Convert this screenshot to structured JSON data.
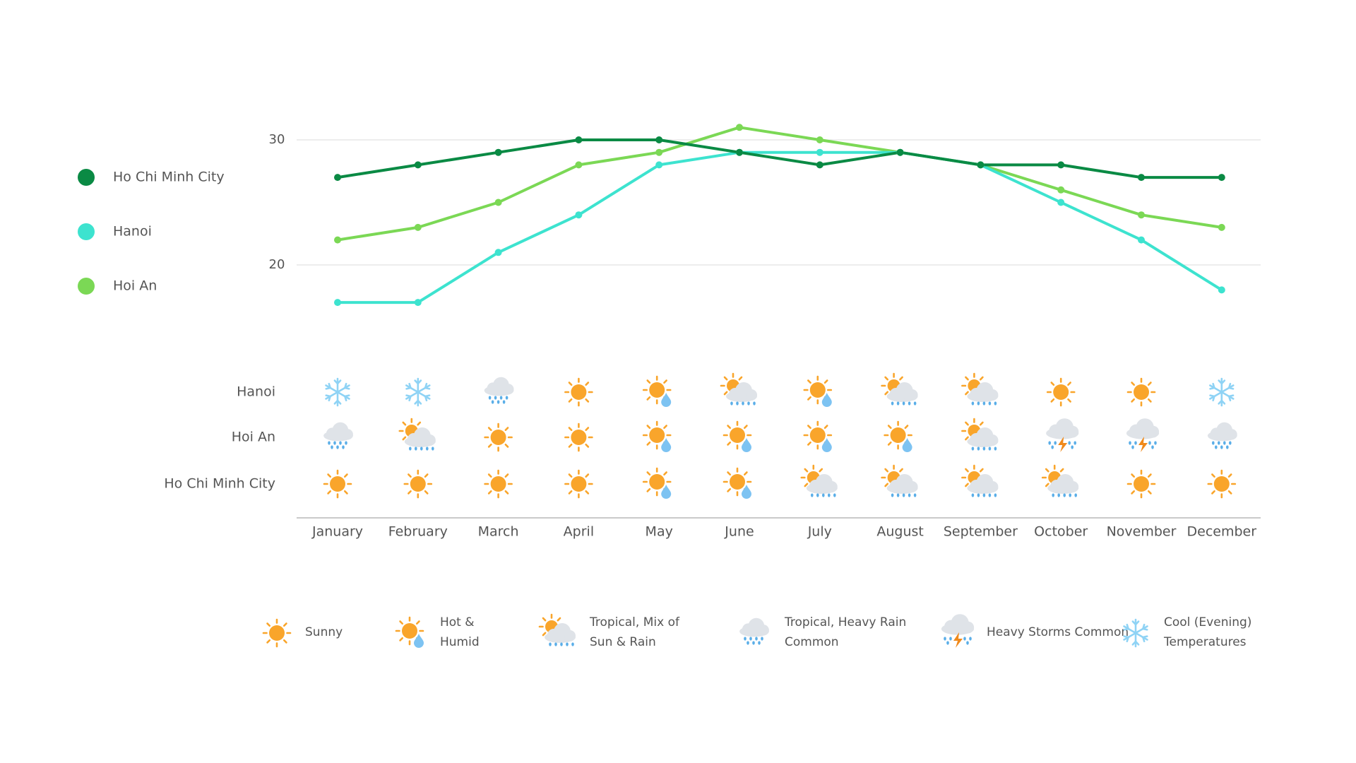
{
  "chart_data": {
    "type": "line",
    "title": "",
    "xlabel": "",
    "ylabel": "",
    "ylim": [
      14,
      33
    ],
    "y_ticks": [
      20,
      30
    ],
    "grid": true,
    "legend_position": "left",
    "categories": [
      "January",
      "February",
      "March",
      "April",
      "May",
      "June",
      "July",
      "August",
      "September",
      "October",
      "November",
      "December"
    ],
    "series": [
      {
        "name": "Ho Chi Minh City",
        "color": "#0a8a44",
        "values": [
          27,
          28,
          29,
          30,
          30,
          29,
          28,
          29,
          28,
          28,
          27,
          27
        ]
      },
      {
        "name": "Hanoi",
        "color": "#3de3cf",
        "values": [
          17,
          17,
          21,
          24,
          28,
          29,
          29,
          29,
          28,
          25,
          22,
          18
        ]
      },
      {
        "name": "Hoi An",
        "color": "#7bd855",
        "values": [
          22,
          23,
          25,
          28,
          29,
          31,
          30,
          29,
          28,
          26,
          24,
          23
        ]
      }
    ]
  },
  "weather_grid": {
    "rows": [
      {
        "city": "Hanoi",
        "icons": [
          "cool",
          "cool",
          "rain",
          "sunny",
          "hot",
          "mix",
          "hot",
          "mix",
          "mix",
          "sunny",
          "sunny",
          "cool"
        ]
      },
      {
        "city": "Hoi An",
        "icons": [
          "rain",
          "mix",
          "sunny",
          "sunny",
          "hot",
          "hot",
          "hot",
          "hot",
          "mix",
          "storm",
          "storm",
          "rain"
        ]
      },
      {
        "city": "Ho Chi Minh City",
        "icons": [
          "sunny",
          "sunny",
          "sunny",
          "sunny",
          "hot",
          "hot",
          "mix",
          "mix",
          "mix",
          "mix",
          "sunny",
          "sunny"
        ]
      }
    ]
  },
  "weather_legend": [
    {
      "icon": "sunny",
      "lines": [
        "Sunny"
      ]
    },
    {
      "icon": "hot",
      "lines": [
        "Hot &",
        "Humid"
      ]
    },
    {
      "icon": "mix",
      "lines": [
        "Tropical, Mix of",
        "Sun & Rain"
      ]
    },
    {
      "icon": "rain",
      "lines": [
        "Tropical, Heavy  Rain",
        "Common"
      ]
    },
    {
      "icon": "storm",
      "lines": [
        "Heavy Storms Common"
      ]
    },
    {
      "icon": "cool",
      "lines": [
        "Cool  (Evening)",
        "Temperatures"
      ]
    }
  ],
  "icon_names": {
    "sunny": "sun-icon",
    "hot": "sun-droplet-icon",
    "mix": "sun-cloud-rain-icon",
    "rain": "cloud-rain-icon",
    "storm": "cloud-lightning-icon",
    "cool": "snowflake-icon"
  },
  "colors": {
    "sun": "#f9a52b",
    "cloud": "#dfe3e8",
    "rain": "#5aaee8",
    "drop": "#7dc3f2",
    "bolt": "#f08a1c",
    "snow": "#8fd3f5",
    "grid": "#e2e2e2",
    "axis": "#b9b9b9",
    "text": "#555555"
  }
}
